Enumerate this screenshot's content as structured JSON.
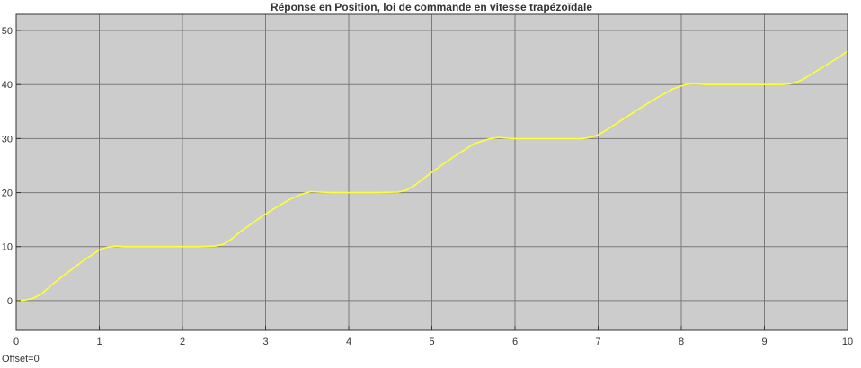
{
  "chart_data": {
    "type": "line",
    "title": "Réponse en Position, loi de commande en vitesse trapézoïdale",
    "xlabel": "",
    "ylabel": "",
    "xlim": [
      0,
      10
    ],
    "ylim": [
      -5.5,
      53
    ],
    "xticks": [
      0,
      1,
      2,
      3,
      4,
      5,
      6,
      7,
      8,
      9,
      10
    ],
    "yticks": [
      0,
      10,
      20,
      30,
      40,
      50
    ],
    "xtick_labels": [
      "0",
      "1",
      "2",
      "3",
      "4",
      "5",
      "6",
      "7",
      "8",
      "9",
      "10"
    ],
    "ytick_labels": [
      "0",
      "10",
      "20",
      "30",
      "40",
      "50"
    ],
    "grid": true,
    "background_color": "#cccccc",
    "grid_color": "#7a7a7a",
    "series": [
      {
        "color": "#ffff33",
        "x": [
          0,
          0.1,
          0.2,
          0.3,
          0.45,
          0.6,
          0.8,
          1.0,
          1.1,
          1.2,
          1.3,
          1.5,
          1.8,
          2.0,
          2.2,
          2.4,
          2.5,
          2.6,
          2.7,
          2.9,
          3.1,
          3.3,
          3.45,
          3.55,
          3.65,
          3.8,
          4.0,
          4.3,
          4.6,
          4.7,
          4.8,
          4.9,
          5.1,
          5.3,
          5.5,
          5.7,
          5.8,
          5.9,
          6.0,
          6.2,
          6.5,
          6.8,
          6.9,
          7.0,
          7.1,
          7.3,
          7.5,
          7.7,
          7.9,
          8.05,
          8.15,
          8.3,
          8.6,
          9.0,
          9.2,
          9.3,
          9.4,
          9.5,
          9.7,
          9.9,
          10.0
        ],
        "y": [
          0,
          0.1,
          0.4,
          1.2,
          3.2,
          5.0,
          7.3,
          9.4,
          9.9,
          10.1,
          10.0,
          10.0,
          10.0,
          10.0,
          10.0,
          10.1,
          10.5,
          11.5,
          12.8,
          15.0,
          17.0,
          18.8,
          19.8,
          20.2,
          20.1,
          20.0,
          20.0,
          20.0,
          20.1,
          20.5,
          21.4,
          22.6,
          24.9,
          27.0,
          29.0,
          30.0,
          30.2,
          30.1,
          30.0,
          30.0,
          30.0,
          30.0,
          30.2,
          30.7,
          31.6,
          33.6,
          35.6,
          37.5,
          39.2,
          40.0,
          40.1,
          40.0,
          40.0,
          40.0,
          40.0,
          40.1,
          40.5,
          41.3,
          43.2,
          45.1,
          46.2
        ]
      }
    ]
  },
  "footer": {
    "offset_label": "Offset=0"
  },
  "colors": {
    "page_background": "#ffffff",
    "axis_frame": "#333333",
    "text": "#333333"
  }
}
